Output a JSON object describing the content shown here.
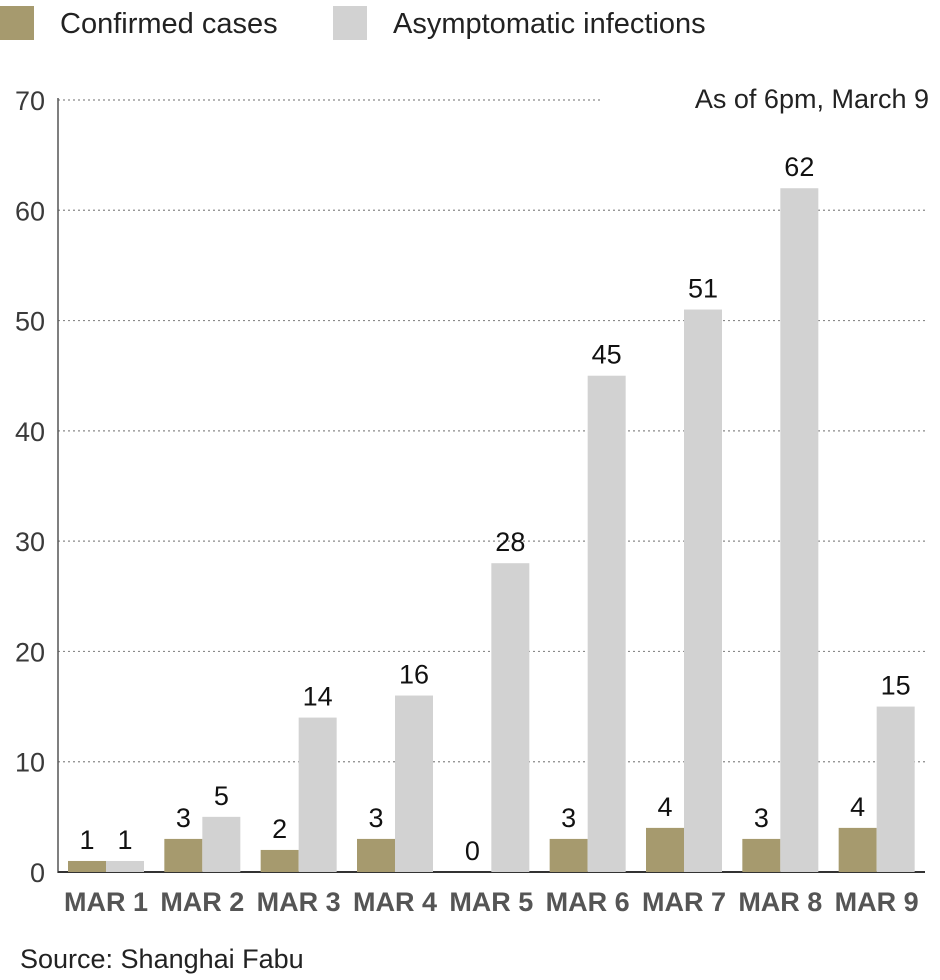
{
  "chart_data": {
    "type": "bar",
    "categories": [
      "MAR 1",
      "MAR 2",
      "MAR 3",
      "MAR 4",
      "MAR 5",
      "MAR 6",
      "MAR 7",
      "MAR 8",
      "MAR 9"
    ],
    "series": [
      {
        "name": "Confirmed cases",
        "values": [
          1,
          3,
          2,
          3,
          0,
          3,
          4,
          3,
          4
        ],
        "color": "#a69a6e"
      },
      {
        "name": "Asymptomatic infections",
        "values": [
          1,
          5,
          14,
          16,
          28,
          45,
          51,
          62,
          15
        ],
        "color": "#d2d2d2"
      }
    ],
    "ylim": [
      0,
      70
    ],
    "yticks": [
      0,
      10,
      20,
      30,
      40,
      50,
      60,
      70
    ],
    "grid": true,
    "legend_position": "top-left",
    "annotation": "As of 6pm, March 9",
    "source": "Source: Shanghai Fabu"
  }
}
